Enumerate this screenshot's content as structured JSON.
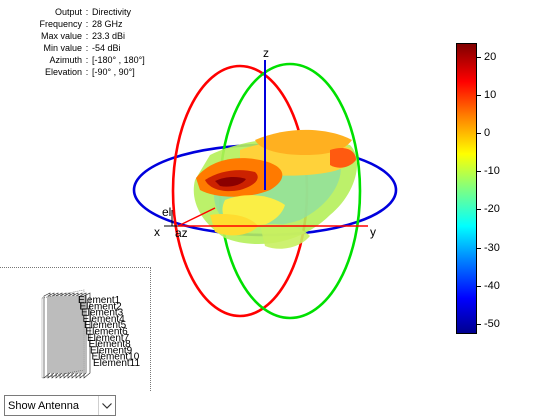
{
  "info": {
    "rows": [
      {
        "label": "Output",
        "value": "Directivity"
      },
      {
        "label": "Frequency",
        "value": "28 GHz"
      },
      {
        "label": "Max value",
        "value": "23.3 dBi"
      },
      {
        "label": "Min value",
        "value": "-54 dBi"
      },
      {
        "label": "Azimuth",
        "value": "[-180° , 180°]"
      },
      {
        "label": "Elevation",
        "value": "[-90° , 90°]"
      }
    ],
    "separator": ":"
  },
  "axes": {
    "z_label": "z",
    "x_label": "x",
    "y_label": "y",
    "el_label": "el",
    "az_label": "az"
  },
  "colorbar": {
    "ticks": [
      "20",
      "10",
      "0",
      "-10",
      "-20",
      "-30",
      "-40",
      "-50"
    ],
    "colormap": "jet"
  },
  "thumbnail": {
    "elements": [
      "Element1",
      "Element2",
      "Element3",
      "Element4",
      "Element5",
      "Element6",
      "Element7",
      "Element8",
      "Element9",
      "Element10",
      "Element11"
    ]
  },
  "dropdown": {
    "selected": "Show Antenna"
  },
  "colors": {
    "red_ring": "#ff0000",
    "green_ring": "#00ee00",
    "blue_ring": "#0000dd"
  }
}
